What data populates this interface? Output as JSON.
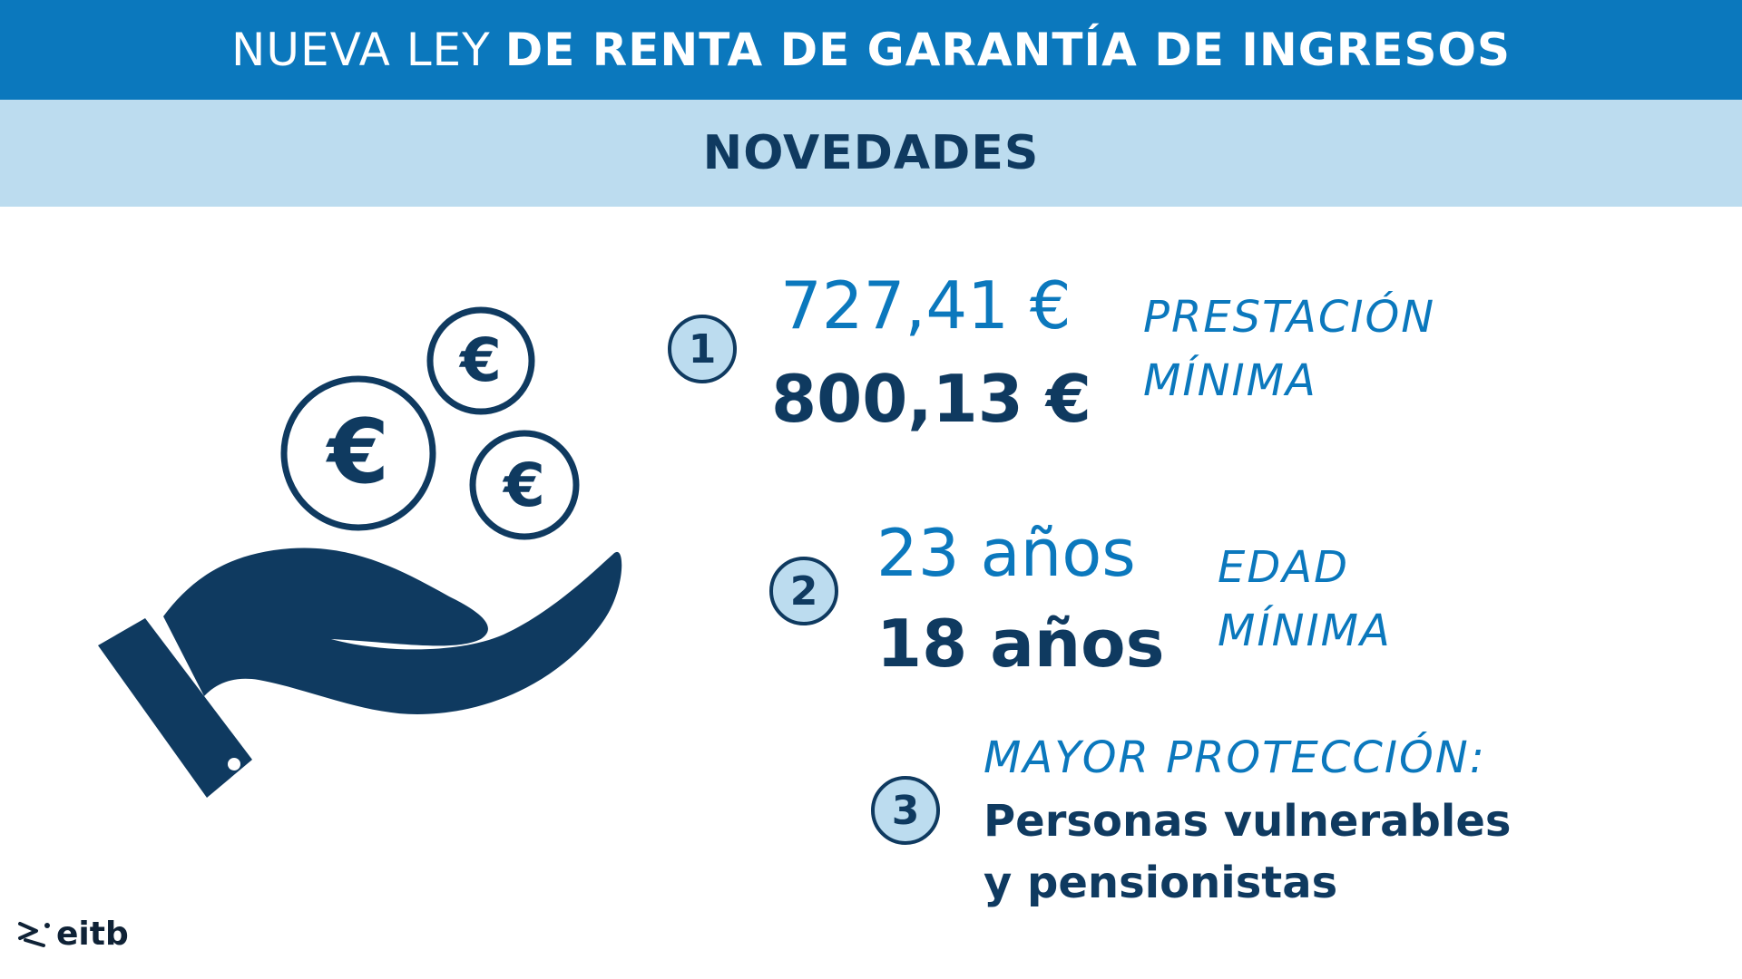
{
  "header": {
    "title_light": "NUEVA LEY",
    "title_bold": "DE RENTA DE GARANTÍA DE INGRESOS"
  },
  "subheader": {
    "title": "NOVEDADES"
  },
  "items": [
    {
      "number": "1",
      "old_value": "727,41 €",
      "new_value": "800,13 €",
      "label_line1": "PRESTACIÓN",
      "label_line2": "MÍNIMA"
    },
    {
      "number": "2",
      "old_value": "23 años",
      "new_value": "18 años",
      "label_line1": "EDAD",
      "label_line2": "MÍNIMA"
    },
    {
      "number": "3",
      "heading": "MAYOR PROTECCIÓN:",
      "line1": "Personas vulnerables",
      "line2": "y pensionistas"
    }
  ],
  "illustration": {
    "icon": "hand-with-euro-coins-icon",
    "coin_symbol": "€"
  },
  "logo": {
    "text": "eitb"
  },
  "colors": {
    "banner_blue": "#0b78bd",
    "light_blue": "#bcdcef",
    "navy": "#0f3a60"
  }
}
